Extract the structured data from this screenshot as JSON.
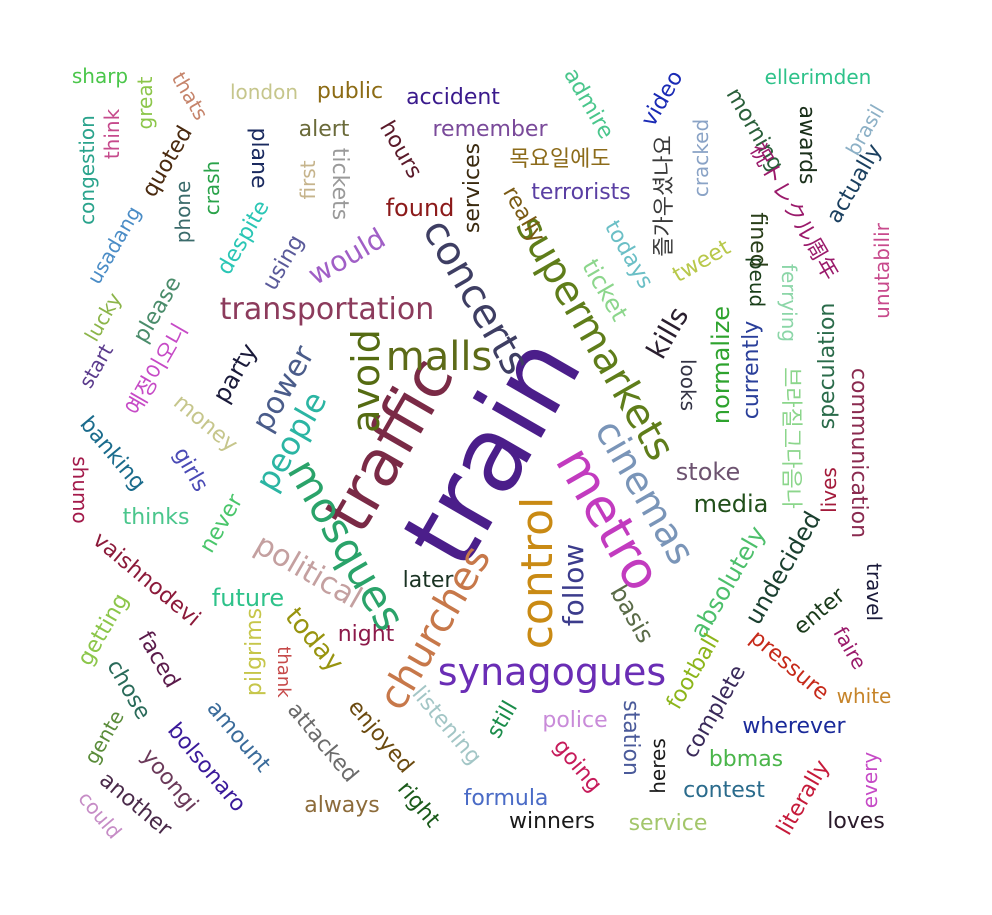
{
  "words": [
    {
      "text": "train",
      "color": "#4b1e8a"
    },
    {
      "text": "traffic",
      "color": "#7a2a46"
    },
    {
      "text": "metro",
      "color": "#c23bbf"
    },
    {
      "text": "control",
      "color": "#c98a14"
    },
    {
      "text": "synagogues",
      "color": "#6a2db5"
    },
    {
      "text": "churches",
      "color": "#c7784a"
    },
    {
      "text": "mosques",
      "color": "#2aa36a"
    },
    {
      "text": "supermarkets",
      "color": "#5f7d1a"
    },
    {
      "text": "cinemas",
      "color": "#7a95b8"
    },
    {
      "text": "concerts",
      "color": "#3e3e63"
    },
    {
      "text": "malls",
      "color": "#5d6b18"
    },
    {
      "text": "avoid",
      "color": "#556b12"
    },
    {
      "text": "people",
      "color": "#2bb5a3"
    },
    {
      "text": "power",
      "color": "#4a5c8a"
    },
    {
      "text": "transportation",
      "color": "#8c3b5c"
    },
    {
      "text": "political",
      "color": "#c4a0a0"
    },
    {
      "text": "follow",
      "color": "#3c3c8c"
    },
    {
      "text": "would",
      "color": "#a05fc6"
    },
    {
      "text": "kills",
      "color": "#2a1f2f"
    },
    {
      "text": "stoke",
      "color": "#6d5370"
    },
    {
      "text": "media",
      "color": "#214f1a"
    },
    {
      "text": "later",
      "color": "#1a3323"
    },
    {
      "text": "night",
      "color": "#8c1a4a"
    },
    {
      "text": "future",
      "color": "#2ec28a"
    },
    {
      "text": "today",
      "color": "#98940f"
    },
    {
      "text": "police",
      "color": "#c98bd9"
    },
    {
      "text": "still",
      "color": "#1a8c4a"
    },
    {
      "text": "basis",
      "color": "#5a6b48"
    },
    {
      "text": "absolutely",
      "color": "#4dbf6b"
    },
    {
      "text": "normalize",
      "color": "#2ea32e"
    },
    {
      "text": "currently",
      "color": "#2a3f9a"
    },
    {
      "text": "undecided",
      "color": "#1a3f2f"
    },
    {
      "text": "speculation",
      "color": "#2a6b4a"
    },
    {
      "text": "communication",
      "color": "#8a2a4f"
    },
    {
      "text": "ticket",
      "color": "#8cd68c"
    },
    {
      "text": "todays",
      "color": "#6bbfc6"
    },
    {
      "text": "tweet",
      "color": "#b8c84a"
    },
    {
      "text": "looks",
      "color": "#333344"
    },
    {
      "text": "ferrying",
      "color": "#8cd6a8"
    },
    {
      "text": "fined",
      "color": "#2a3f1a"
    },
    {
      "text": "peud",
      "color": "#1a3f1a"
    },
    {
      "text": "unutabilir",
      "color": "#c84a8c"
    },
    {
      "text": "actually",
      "color": "#1a3f5f"
    },
    {
      "text": "brasil",
      "color": "#8cb0c6"
    },
    {
      "text": "awards",
      "color": "#1a2f1a"
    },
    {
      "text": "morning",
      "color": "#2a5f3a"
    },
    {
      "text": "ellerimden",
      "color": "#2ec28a"
    },
    {
      "text": "video",
      "color": "#1a2ab5"
    },
    {
      "text": "admire",
      "color": "#4ac68c"
    },
    {
      "text": "cracked",
      "color": "#8aa3c6"
    },
    {
      "text": "즐가우셨나요",
      "color": "#3a3a3a"
    },
    {
      "text": "목요일에도",
      "color": "#8c6b1a"
    },
    {
      "text": "祝トレクル周年",
      "color": "#9a1a6b"
    },
    {
      "text": "terrorists",
      "color": "#5a3fa3"
    },
    {
      "text": "really",
      "color": "#7a5a14"
    },
    {
      "text": "services",
      "color": "#3a2a0f"
    },
    {
      "text": "found",
      "color": "#8c1a1a"
    },
    {
      "text": "remember",
      "color": "#7a4a9a"
    },
    {
      "text": "accident",
      "color": "#3a1a8c"
    },
    {
      "text": "hours",
      "color": "#5a1a2a"
    },
    {
      "text": "alert",
      "color": "#6b6b3a"
    },
    {
      "text": "tickets",
      "color": "#9a9a9a"
    },
    {
      "text": "first",
      "color": "#c6b48c"
    },
    {
      "text": "public",
      "color": "#8c6b14"
    },
    {
      "text": "london",
      "color": "#c6c68c"
    },
    {
      "text": "plane",
      "color": "#1a2a5f"
    },
    {
      "text": "thats",
      "color": "#c6846b"
    },
    {
      "text": "great",
      "color": "#8cc64a"
    },
    {
      "text": "sharp",
      "color": "#4ac64a"
    },
    {
      "text": "think",
      "color": "#c64a8c"
    },
    {
      "text": "congestion",
      "color": "#2aa38c"
    },
    {
      "text": "quoted",
      "color": "#4a2a0f"
    },
    {
      "text": "crash",
      "color": "#2aa34a"
    },
    {
      "text": "phone",
      "color": "#3a6b6b"
    },
    {
      "text": "despite",
      "color": "#2ac6b5"
    },
    {
      "text": "using",
      "color": "#5a5a9a"
    },
    {
      "text": "usadang",
      "color": "#4a8cc6"
    },
    {
      "text": "lucky",
      "color": "#8cb54a"
    },
    {
      "text": "please",
      "color": "#4a8c6b"
    },
    {
      "text": "start",
      "color": "#5a3a8c"
    },
    {
      "text": "예정이오니",
      "color": "#c64ac6"
    },
    {
      "text": "party",
      "color": "#1a1a3a"
    },
    {
      "text": "money",
      "color": "#c6c68c"
    },
    {
      "text": "banking",
      "color": "#1a6b8c"
    },
    {
      "text": "girls",
      "color": "#4a4ab5"
    },
    {
      "text": "shumo",
      "color": "#a31a4a"
    },
    {
      "text": "thinks",
      "color": "#4ac68c"
    },
    {
      "text": "never",
      "color": "#4ac66b"
    },
    {
      "text": "vaishnodevi",
      "color": "#8c1a3a"
    },
    {
      "text": "getting",
      "color": "#8cc64a"
    },
    {
      "text": "faced",
      "color": "#5a1a4a"
    },
    {
      "text": "chose",
      "color": "#2a6b5a"
    },
    {
      "text": "pilgrims",
      "color": "#c6c64a"
    },
    {
      "text": "thank",
      "color": "#c64a4a"
    },
    {
      "text": "amount",
      "color": "#3a6b9a"
    },
    {
      "text": "gente",
      "color": "#5a8c3a"
    },
    {
      "text": "bolsonaro",
      "color": "#3a1a9a"
    },
    {
      "text": "yoongi",
      "color": "#6b3a5a"
    },
    {
      "text": "another",
      "color": "#4a2a4a"
    },
    {
      "text": "could",
      "color": "#c68cc6"
    },
    {
      "text": "attacked",
      "color": "#6b6b6b"
    },
    {
      "text": "enjoyed",
      "color": "#6b4a0f"
    },
    {
      "text": "always",
      "color": "#8c6b3a"
    },
    {
      "text": "right",
      "color": "#1a5a1a"
    },
    {
      "text": "listening",
      "color": "#a3c6c6"
    },
    {
      "text": "formula",
      "color": "#4a6bc6"
    },
    {
      "text": "winners",
      "color": "#1a1a1a"
    },
    {
      "text": "going",
      "color": "#c61a5a"
    },
    {
      "text": "station",
      "color": "#4a5a9a"
    },
    {
      "text": "heres",
      "color": "#1a1a1a"
    },
    {
      "text": "service",
      "color": "#a3c66b"
    },
    {
      "text": "football",
      "color": "#8cb51a"
    },
    {
      "text": "complete",
      "color": "#3a2a5a"
    },
    {
      "text": "bbmas",
      "color": "#4ab54a"
    },
    {
      "text": "contest",
      "color": "#2a6b8c"
    },
    {
      "text": "wherever",
      "color": "#1a2a9a"
    },
    {
      "text": "literally",
      "color": "#c61a3a"
    },
    {
      "text": "every",
      "color": "#c64ac6"
    },
    {
      "text": "loves",
      "color": "#2a1a2a"
    },
    {
      "text": "white",
      "color": "#c6842a"
    },
    {
      "text": "faire",
      "color": "#9a1a6b"
    },
    {
      "text": "pressure",
      "color": "#c62a1a"
    },
    {
      "text": "enter",
      "color": "#1a3a1a"
    },
    {
      "text": "travel",
      "color": "#1a1a3a"
    },
    {
      "text": "lives",
      "color": "#a31a3a"
    },
    {
      "text": "브라질그다음나",
      "color": "#8cd68c"
    }
  ]
}
